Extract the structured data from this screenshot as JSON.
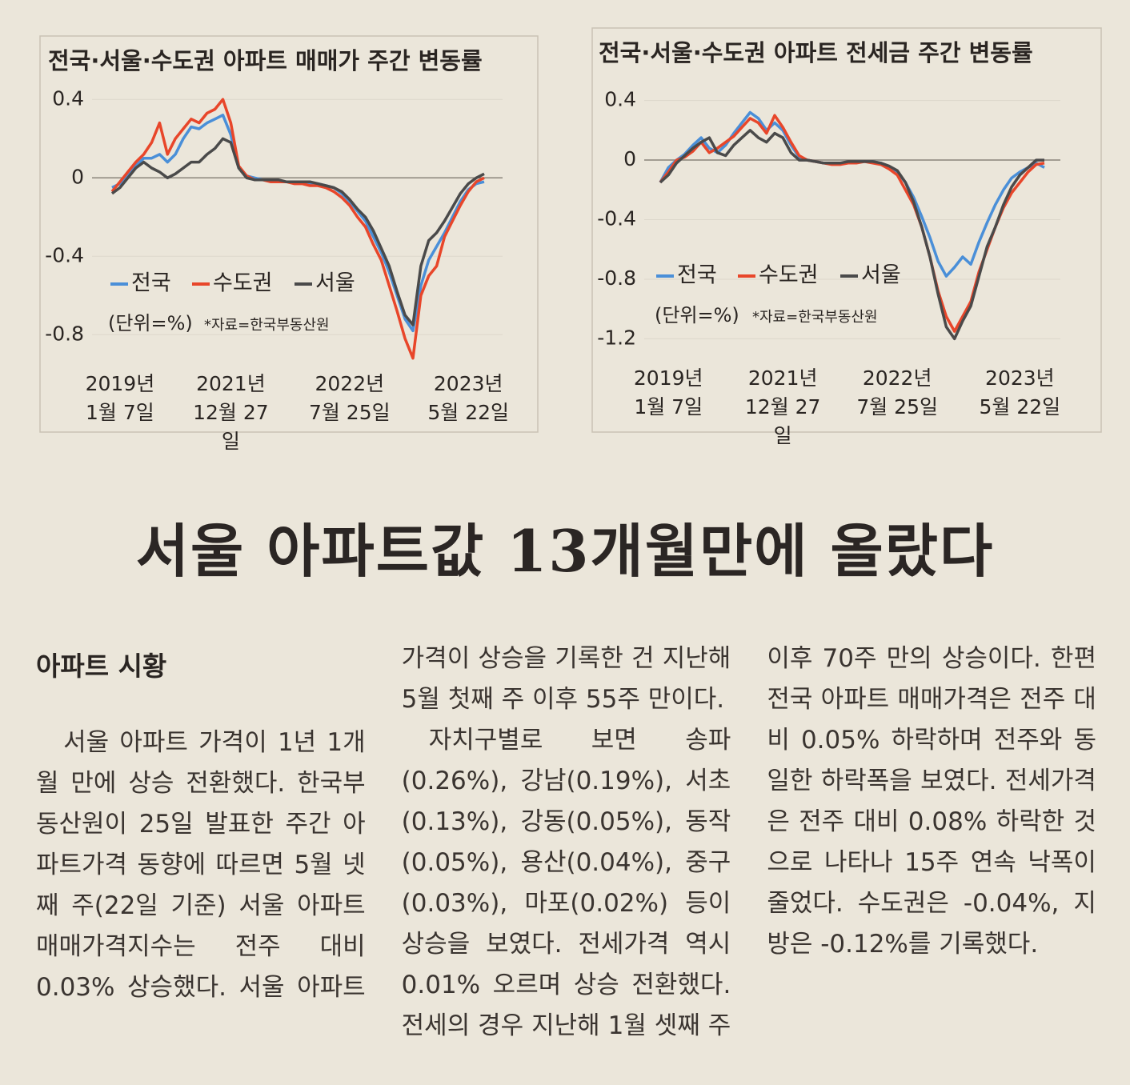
{
  "chart_data": [
    {
      "type": "line",
      "title": "전국·서울·수도권 아파트 매매가 주간 변동률",
      "categories": [
        null,
        "2019년 1월 7일",
        null,
        null,
        null,
        null,
        null,
        null,
        null,
        null,
        null,
        null,
        null,
        null,
        null,
        "2021년 12월 27일",
        null,
        null,
        null,
        null,
        null,
        null,
        null,
        null,
        null,
        null,
        null,
        null,
        null,
        null,
        "2022년 7월 25일",
        null,
        null,
        null,
        null,
        null,
        null,
        null,
        null,
        null,
        null,
        null,
        null,
        null,
        null,
        "2023년 5월 22일",
        null,
        null
      ],
      "series": [
        {
          "name": "전국",
          "color": "#4a8fd8",
          "values": [
            -0.05,
            -0.03,
            0.02,
            0.06,
            0.1,
            0.1,
            0.12,
            0.08,
            0.12,
            0.2,
            0.26,
            0.25,
            0.28,
            0.3,
            0.32,
            0.22,
            0.05,
            0.01,
            0.0,
            -0.01,
            -0.01,
            -0.02,
            -0.02,
            -0.02,
            -0.02,
            -0.03,
            -0.03,
            -0.04,
            -0.05,
            -0.08,
            -0.12,
            -0.17,
            -0.22,
            -0.3,
            -0.38,
            -0.48,
            -0.6,
            -0.72,
            -0.78,
            -0.55,
            -0.42,
            -0.35,
            -0.28,
            -0.2,
            -0.12,
            -0.06,
            -0.03,
            -0.02
          ]
        },
        {
          "name": "수도권",
          "color": "#e8462a",
          "values": [
            -0.07,
            -0.02,
            0.03,
            0.08,
            0.12,
            0.18,
            0.28,
            0.12,
            0.2,
            0.25,
            0.3,
            0.28,
            0.33,
            0.35,
            0.4,
            0.28,
            0.06,
            0.01,
            -0.01,
            -0.01,
            -0.02,
            -0.02,
            -0.02,
            -0.03,
            -0.03,
            -0.04,
            -0.04,
            -0.05,
            -0.07,
            -0.1,
            -0.14,
            -0.2,
            -0.25,
            -0.34,
            -0.42,
            -0.55,
            -0.68,
            -0.82,
            -0.92,
            -0.6,
            -0.5,
            -0.45,
            -0.3,
            -0.22,
            -0.14,
            -0.07,
            -0.02,
            0.0
          ]
        },
        {
          "name": "서울",
          "color": "#4a4a4a",
          "values": [
            -0.08,
            -0.05,
            0.0,
            0.05,
            0.08,
            0.05,
            0.03,
            0.0,
            0.02,
            0.05,
            0.08,
            0.08,
            0.12,
            0.15,
            0.2,
            0.18,
            0.05,
            0.0,
            -0.01,
            -0.01,
            -0.01,
            -0.01,
            -0.02,
            -0.02,
            -0.02,
            -0.02,
            -0.03,
            -0.04,
            -0.05,
            -0.07,
            -0.11,
            -0.16,
            -0.2,
            -0.27,
            -0.36,
            -0.45,
            -0.58,
            -0.7,
            -0.75,
            -0.45,
            -0.32,
            -0.28,
            -0.22,
            -0.15,
            -0.08,
            -0.03,
            0.0,
            0.02
          ]
        }
      ],
      "ylim": [
        -0.95,
        0.45
      ],
      "yticks": [
        0.4,
        0,
        -0.4,
        -0.8
      ],
      "grid": true,
      "unit_note": "(단위=%)",
      "source": "*자료=한국부동산원"
    },
    {
      "type": "line",
      "title": "전국·서울·수도권 아파트 전세금 주간 변동률",
      "categories": [
        null,
        "2019년 1월 7일",
        null,
        null,
        null,
        null,
        null,
        null,
        null,
        null,
        null,
        null,
        null,
        null,
        null,
        "2021년 12월 27일",
        null,
        null,
        null,
        null,
        null,
        null,
        null,
        null,
        null,
        null,
        null,
        null,
        null,
        "2022년 7월 25일",
        null,
        null,
        null,
        null,
        null,
        null,
        null,
        null,
        null,
        null,
        null,
        null,
        null,
        null,
        "2023년 5월 22일",
        null,
        null,
        null
      ],
      "series": [
        {
          "name": "전국",
          "color": "#4a8fd8",
          "values": [
            -0.15,
            -0.05,
            0.0,
            0.04,
            0.1,
            0.15,
            0.08,
            0.05,
            0.1,
            0.18,
            0.25,
            0.32,
            0.28,
            0.2,
            0.25,
            0.2,
            0.1,
            0.02,
            0.0,
            -0.01,
            -0.02,
            -0.02,
            -0.02,
            -0.02,
            -0.01,
            -0.01,
            -0.01,
            -0.02,
            -0.05,
            -0.08,
            -0.15,
            -0.25,
            -0.38,
            -0.52,
            -0.68,
            -0.78,
            -0.72,
            -0.65,
            -0.7,
            -0.55,
            -0.42,
            -0.3,
            -0.2,
            -0.12,
            -0.08,
            -0.05,
            -0.02,
            -0.05
          ]
        },
        {
          "name": "수도권",
          "color": "#e8462a",
          "values": [
            -0.15,
            -0.08,
            0.0,
            0.02,
            0.06,
            0.12,
            0.05,
            0.08,
            0.12,
            0.16,
            0.22,
            0.28,
            0.25,
            0.18,
            0.3,
            0.22,
            0.12,
            0.03,
            0.0,
            -0.01,
            -0.02,
            -0.03,
            -0.03,
            -0.02,
            -0.02,
            -0.01,
            -0.02,
            -0.03,
            -0.06,
            -0.1,
            -0.2,
            -0.3,
            -0.45,
            -0.65,
            -0.88,
            -1.05,
            -1.15,
            -1.05,
            -0.95,
            -0.75,
            -0.6,
            -0.45,
            -0.32,
            -0.22,
            -0.15,
            -0.08,
            -0.03,
            -0.02
          ]
        },
        {
          "name": "서울",
          "color": "#4a4a4a",
          "values": [
            -0.15,
            -0.1,
            -0.02,
            0.03,
            0.08,
            0.12,
            0.15,
            0.05,
            0.03,
            0.1,
            0.15,
            0.2,
            0.15,
            0.12,
            0.18,
            0.15,
            0.05,
            0.0,
            0.0,
            -0.01,
            -0.02,
            -0.02,
            -0.02,
            -0.01,
            -0.01,
            -0.01,
            -0.01,
            -0.02,
            -0.04,
            -0.07,
            -0.15,
            -0.28,
            -0.45,
            -0.65,
            -0.9,
            -1.12,
            -1.2,
            -1.08,
            -0.98,
            -0.78,
            -0.58,
            -0.45,
            -0.3,
            -0.18,
            -0.1,
            -0.05,
            0.0,
            0.0
          ]
        }
      ],
      "ylim": [
        -1.3,
        0.5
      ],
      "yticks": [
        0.4,
        0,
        -0.4,
        -0.8,
        -1.2
      ],
      "grid": true,
      "unit_note": "(단위=%)",
      "source": "*자료=한국부동산원"
    }
  ],
  "article": {
    "headline": "서울 아파트값 13개월만에 올랐다",
    "section": "아파트 시황",
    "paragraphs": [
      "서울 아파트 가격이 1년 1개월 만에 상승 전환했다. 한국부동산원이 25일 발표한 주간 아파트가격 동향에 따르면 5월 넷째 주(22일 기준) 서울 아파트 매매가격지수는 전주 대비 0.03% 상승했다. 서울 아파트 가격이 상승을 기록한 건 지난해 5월 첫째 주 이후 55주 만이다.",
      "자치구별로 보면 송파(0.26%), 강남(0.19%), 서초(0.13%), 강동(0.05%), 동작(0.05%), 용산(0.04%), 중구(0.03%), 마포(0.02%) 등이 상승을 보였다. 전세가격 역시 0.01% 오르며 상승 전환했다. 전세의 경우 지난해 1월 셋째 주 이후 70주 만의 상승이다. 한편 전국 아파트 매매가격은 전주 대비 0.05% 하락하며 전주와 동일한 하락폭을 보였다. 전세가격은 전주 대비 0.08% 하락한 것으로 나타나 15주 연속 낙폭이 줄었다. 수도권은 -0.04%, 지방은 -0.12%를 기록했다."
    ]
  }
}
